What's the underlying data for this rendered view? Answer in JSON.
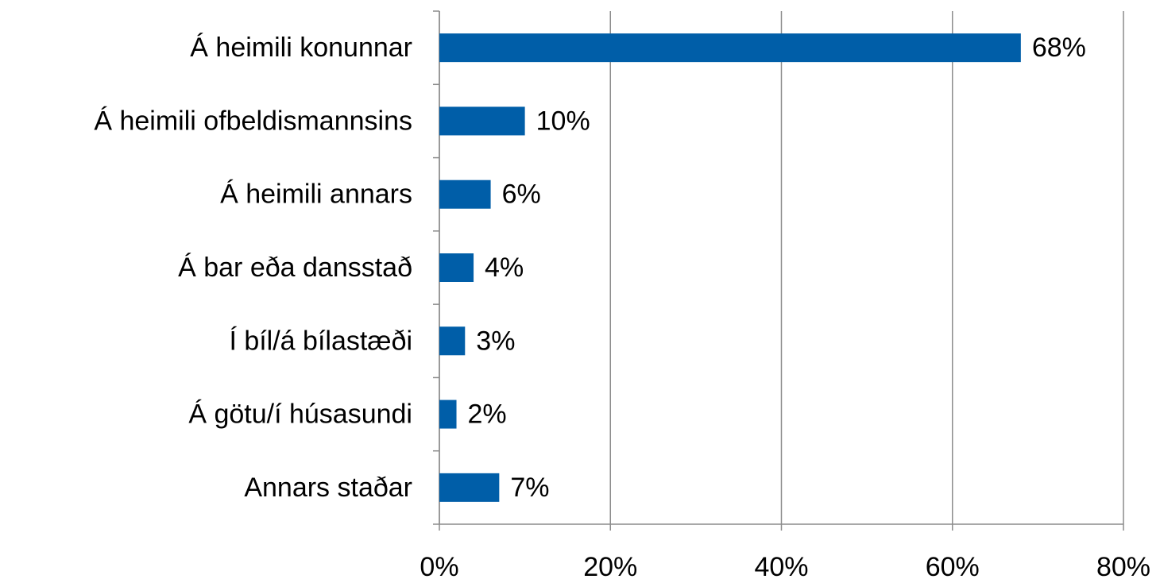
{
  "chart_data": {
    "type": "bar",
    "orientation": "horizontal",
    "categories": [
      "Á heimili konunnar",
      "Á heimili ofbeldismannsins",
      "Á heimili annars",
      "Á bar eða dansstað",
      "Í bíl/á bílastæði",
      "Á götu/í húsasundi",
      "Annars staðar"
    ],
    "values": [
      68,
      10,
      6,
      4,
      3,
      2,
      7
    ],
    "value_labels": [
      "68%",
      "10%",
      "6%",
      "4%",
      "3%",
      "2%",
      "7%"
    ],
    "color": "#005ea8",
    "xlim": [
      0,
      80
    ],
    "xticks": [
      {
        "value": 0,
        "label": "0%"
      },
      {
        "value": 20,
        "label": "20%"
      },
      {
        "value": 40,
        "label": "40%"
      },
      {
        "value": 60,
        "label": "60%"
      },
      {
        "value": 80,
        "label": "80%"
      }
    ],
    "grid": true
  }
}
